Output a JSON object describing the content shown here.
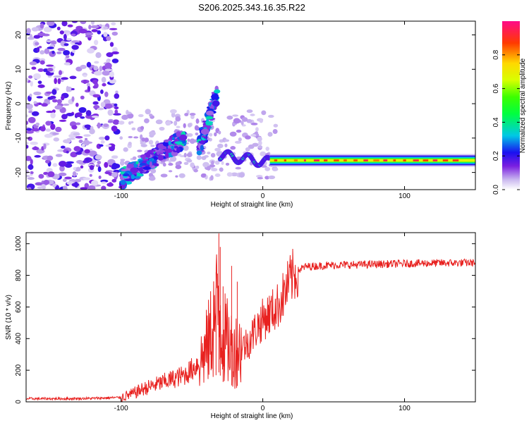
{
  "figure_title": "S206.2025.343.16.35.R22",
  "colors": {
    "axis": "#000000",
    "snr_line": "#e8211f",
    "background": "#ffffff"
  },
  "chart_data": [
    {
      "type": "heatmap",
      "title": "S206.2025.343.16.35.R22",
      "xlabel": "Height of straight line (km)",
      "ylabel": "Frequency (Hz)",
      "xlim": [
        -167,
        150
      ],
      "ylim": [
        -25,
        24
      ],
      "xticks": [
        -100,
        0,
        100
      ],
      "yticks": [
        -20,
        -10,
        0,
        10,
        20
      ],
      "colorbar": {
        "label": "Normalized spectral amplitude",
        "range": [
          0,
          1
        ],
        "ticks": [
          0.0,
          0.2,
          0.4,
          0.6,
          0.8
        ],
        "tick_labels": [
          "0.0",
          "0.2",
          "0.4",
          "0.6",
          "0.8"
        ],
        "colormap": "rainbow-white"
      },
      "features": {
        "noise_region_x": [
          -167,
          -102
        ],
        "ramp_1": {
          "x": [
            -100,
            -55
          ],
          "freq": [
            -22,
            -10
          ]
        },
        "ramp_2": {
          "x": [
            -45,
            -32
          ],
          "freq": [
            -13,
            3
          ]
        },
        "ripple_x": [
          -30,
          5
        ],
        "steady_band": {
          "x": [
            5,
            150
          ],
          "freq": -16.5,
          "peak_amplitude": 0.95
        }
      }
    },
    {
      "type": "line",
      "xlabel": "Height of straight line (km)",
      "ylabel": "SNR (10 * v/v)",
      "xlim": [
        -167,
        150
      ],
      "ylim": [
        0,
        1070
      ],
      "xticks": [
        -100,
        0,
        100
      ],
      "yticks": [
        0,
        200,
        400,
        600,
        800,
        1000
      ],
      "series": [
        {
          "name": "SNR",
          "color": "#e8211f",
          "x": [
            -167,
            -140,
            -120,
            -100,
            -92,
            -85,
            -75,
            -65,
            -55,
            -48,
            -42,
            -38,
            -35,
            -31,
            -28,
            -24,
            -20,
            -15,
            -10,
            -5,
            0,
            5,
            10,
            15,
            20,
            25,
            30,
            40,
            50,
            70,
            90,
            110,
            130,
            150
          ],
          "y": [
            20,
            20,
            22,
            28,
            50,
            80,
            110,
            140,
            170,
            220,
            290,
            380,
            500,
            620,
            420,
            360,
            330,
            340,
            380,
            460,
            520,
            560,
            600,
            680,
            780,
            830,
            855,
            860,
            865,
            868,
            872,
            876,
            878,
            880
          ],
          "spikes": [
            {
              "x": -31,
              "y": 1065
            },
            {
              "x": -30,
              "y": 980
            },
            {
              "x": -33,
              "y": 820
            },
            {
              "x": -22,
              "y": 860
            },
            {
              "x": -18,
              "y": 760
            },
            {
              "x": -28,
              "y": 730
            }
          ]
        }
      ]
    }
  ]
}
